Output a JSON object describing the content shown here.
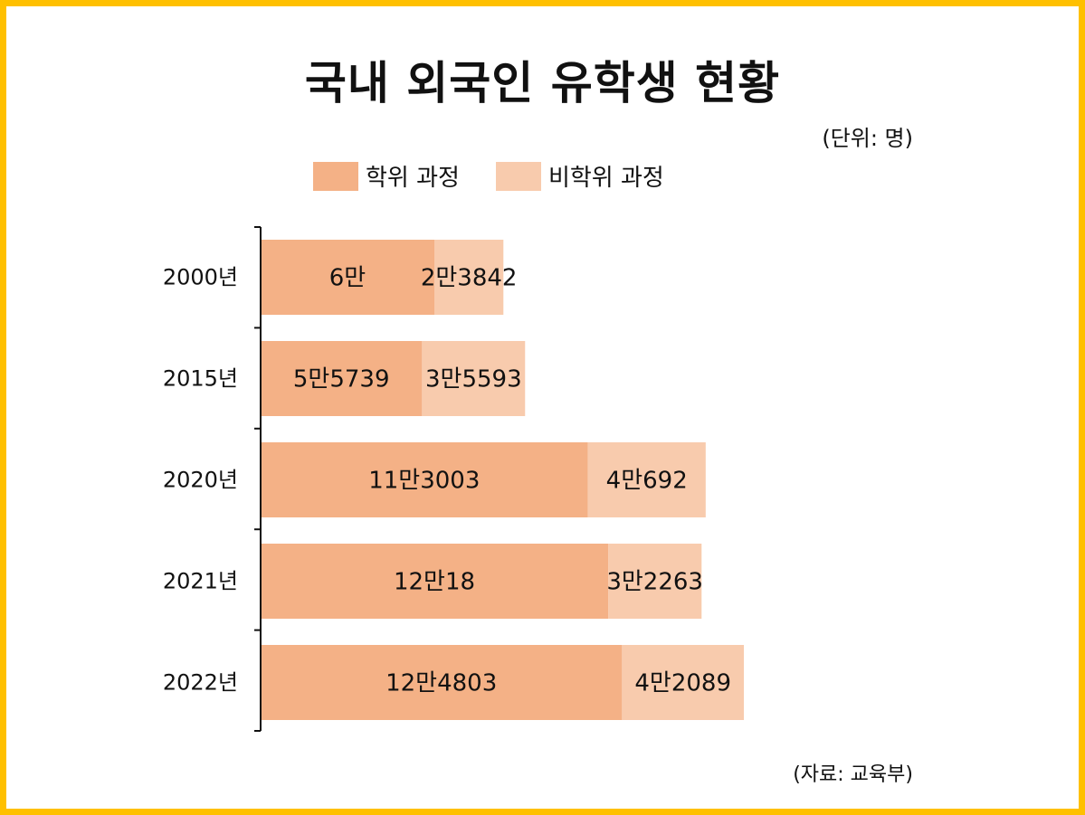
{
  "title": "국내 외국인 유학생 현황",
  "unit_note": "(단위: 명)",
  "source_note": "(자료: 교육부)",
  "colors": {
    "frame": "#ffc000",
    "degree": "#f4b186",
    "non_degree": "#f8cbad"
  },
  "chart_data": {
    "type": "bar",
    "orientation": "horizontal",
    "stacked": true,
    "categories": [
      "2000년",
      "2015년",
      "2020년",
      "2021년",
      "2022년"
    ],
    "series": [
      {
        "name": "학위 과정",
        "values": [
          60000,
          55739,
          113003,
          120018,
          124803
        ],
        "labels": [
          "6만",
          "5만5739",
          "11만3003",
          "12만18",
          "12만4803"
        ]
      },
      {
        "name": "비학위 과정",
        "values": [
          23842,
          35593,
          40692,
          32263,
          42089
        ],
        "labels": [
          "2만3842",
          "3만5593",
          "4만692",
          "3만2263",
          "4만2089"
        ]
      }
    ],
    "legend_position": "top",
    "grid": false
  }
}
